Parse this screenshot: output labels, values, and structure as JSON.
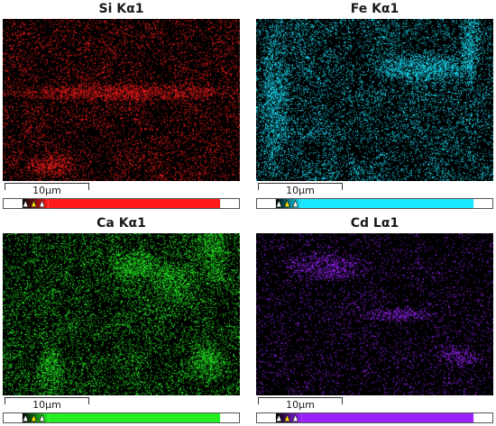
{
  "panels": [
    {
      "title": "Si Kα1",
      "scale_label": "10μm",
      "color": "#ff1a1a",
      "icon": "map-image"
    },
    {
      "title": "Fe Kα1",
      "scale_label": "10μm",
      "color": "#19e6ff",
      "icon": "map-image"
    },
    {
      "title": "Ca Kα1",
      "scale_label": "10μm",
      "color": "#22ee22",
      "icon": "map-image"
    },
    {
      "title": "Cd Lα1",
      "scale_label": "10μm",
      "color": "#9a22ff",
      "icon": "map-image"
    }
  ]
}
